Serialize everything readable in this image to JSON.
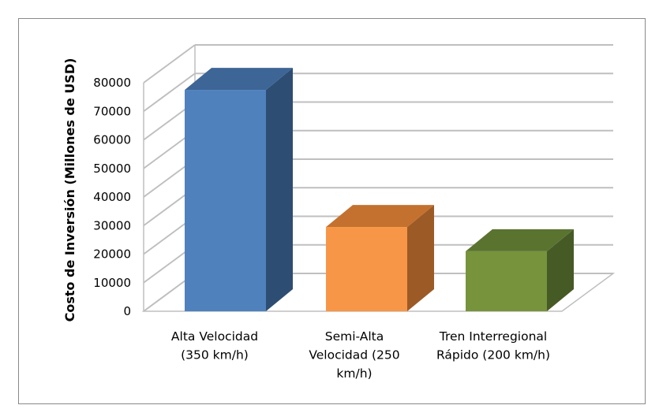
{
  "chart_data": {
    "type": "bar",
    "title": "",
    "xlabel": "",
    "ylabel": "Costo de Inversión  (Millones de USD)",
    "categories": [
      [
        "Alta Velocidad",
        "(350 km/h)"
      ],
      [
        "Semi-Alta",
        "Velocidad (250",
        "km/h)"
      ],
      [
        "Tren Interregional",
        "Rápido (200 km/h)"
      ]
    ],
    "values": [
      77500,
      29500,
      21000
    ],
    "ylim": [
      0,
      80000
    ],
    "yticks": [
      0,
      10000,
      20000,
      30000,
      40000,
      50000,
      60000,
      70000,
      80000
    ],
    "grid": true,
    "legend": "none",
    "three_d": true,
    "colors": [
      {
        "front": "#4f81bd",
        "top": "#3d6596",
        "side": "#2e4d73"
      },
      {
        "front": "#f79646",
        "top": "#c4712f",
        "side": "#9c5a26"
      },
      {
        "front": "#77933c",
        "top": "#5a7430",
        "side": "#465a26"
      }
    ],
    "grid_color": "#bfbfbf",
    "floor_color": "#bfbfbf"
  }
}
